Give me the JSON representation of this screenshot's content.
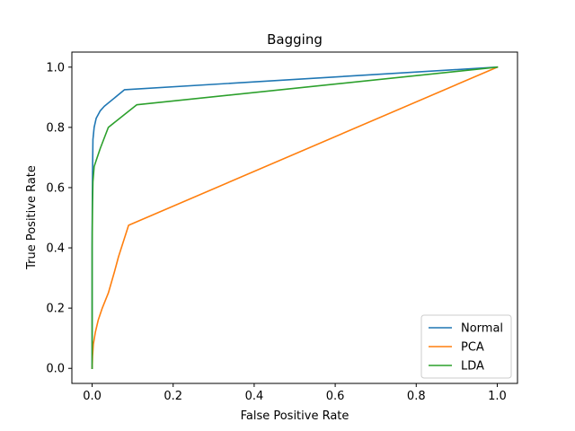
{
  "chart_data": {
    "type": "line",
    "title": "Bagging",
    "xlabel": "False Positive Rate",
    "ylabel": "True Positive Rate",
    "xlim": [
      -0.05,
      1.05
    ],
    "ylim": [
      -0.05,
      1.05
    ],
    "xticks": [
      "0.0",
      "0.2",
      "0.4",
      "0.6",
      "0.8",
      "1.0"
    ],
    "yticks": [
      "0.0",
      "0.2",
      "0.4",
      "0.6",
      "0.8",
      "1.0"
    ],
    "grid": false,
    "legend_position": "lower-right",
    "series": [
      {
        "name": "Normal",
        "color": "#1f77b4",
        "x": [
          0.0,
          0.0,
          0.001,
          0.002,
          0.005,
          0.01,
          0.02,
          0.03,
          0.08,
          1.0
        ],
        "y": [
          0.0,
          0.45,
          0.65,
          0.76,
          0.8,
          0.83,
          0.855,
          0.87,
          0.925,
          1.0
        ]
      },
      {
        "name": "PCA",
        "color": "#ff7f0e",
        "x": [
          0.0,
          0.001,
          0.003,
          0.008,
          0.015,
          0.025,
          0.04,
          0.055,
          0.065,
          0.09,
          1.0
        ],
        "y": [
          0.0,
          0.04,
          0.08,
          0.12,
          0.16,
          0.2,
          0.25,
          0.32,
          0.37,
          0.475,
          1.0
        ]
      },
      {
        "name": "LDA",
        "color": "#2ca02c",
        "x": [
          0.0,
          0.0,
          0.001,
          0.002,
          0.005,
          0.01,
          0.02,
          0.04,
          0.11,
          1.0
        ],
        "y": [
          0.0,
          0.4,
          0.55,
          0.62,
          0.67,
          0.69,
          0.73,
          0.8,
          0.875,
          1.0
        ]
      }
    ]
  }
}
